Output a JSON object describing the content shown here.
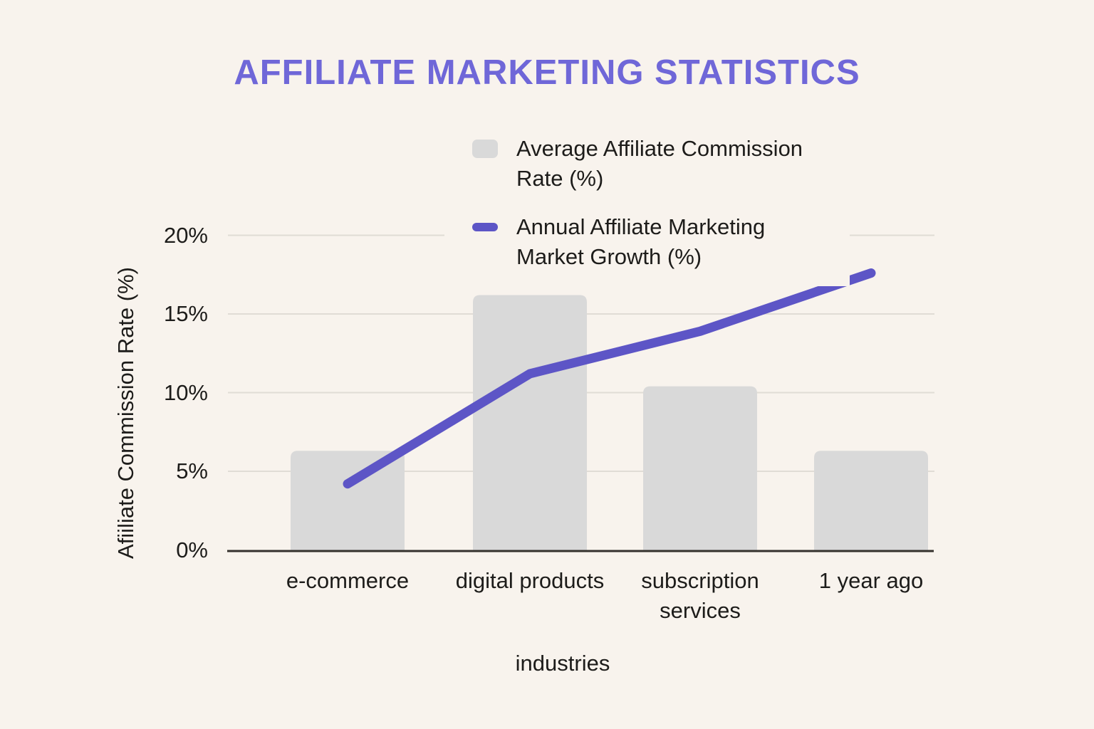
{
  "colors": {
    "bg": "#f8f3ed",
    "title": "#6f67d8",
    "text": "#1d1c1a",
    "grid": "#e0dcd5",
    "axis": "#35312d",
    "bar": "#d9d9d9",
    "line": "#5d55c6"
  },
  "chart_data": {
    "type": "bar+line",
    "title": "AFFILIATE MARKETING STATISTICS",
    "categories": [
      "e-commerce",
      "digital products",
      "subscription services",
      "1 year ago"
    ],
    "series": [
      {
        "name": "Average Affiliate Commission Rate (%)",
        "type": "bar",
        "color": "#d9d9d9",
        "values": [
          6.3,
          16.2,
          10.4,
          6.3
        ]
      },
      {
        "name": "Annual Affiliate Marketing Market Growth (%)",
        "type": "line",
        "color": "#5d55c6",
        "values": [
          4.2,
          11.2,
          13.9,
          17.6
        ]
      }
    ],
    "xlabel": "industries",
    "ylabel": "Afiiliate Commission Rate (%)",
    "y_ticks": [
      "0%",
      "5%",
      "10%",
      "15%",
      "20%"
    ],
    "ylim": [
      0,
      20
    ],
    "grid": true,
    "legend_position": "top-center"
  }
}
